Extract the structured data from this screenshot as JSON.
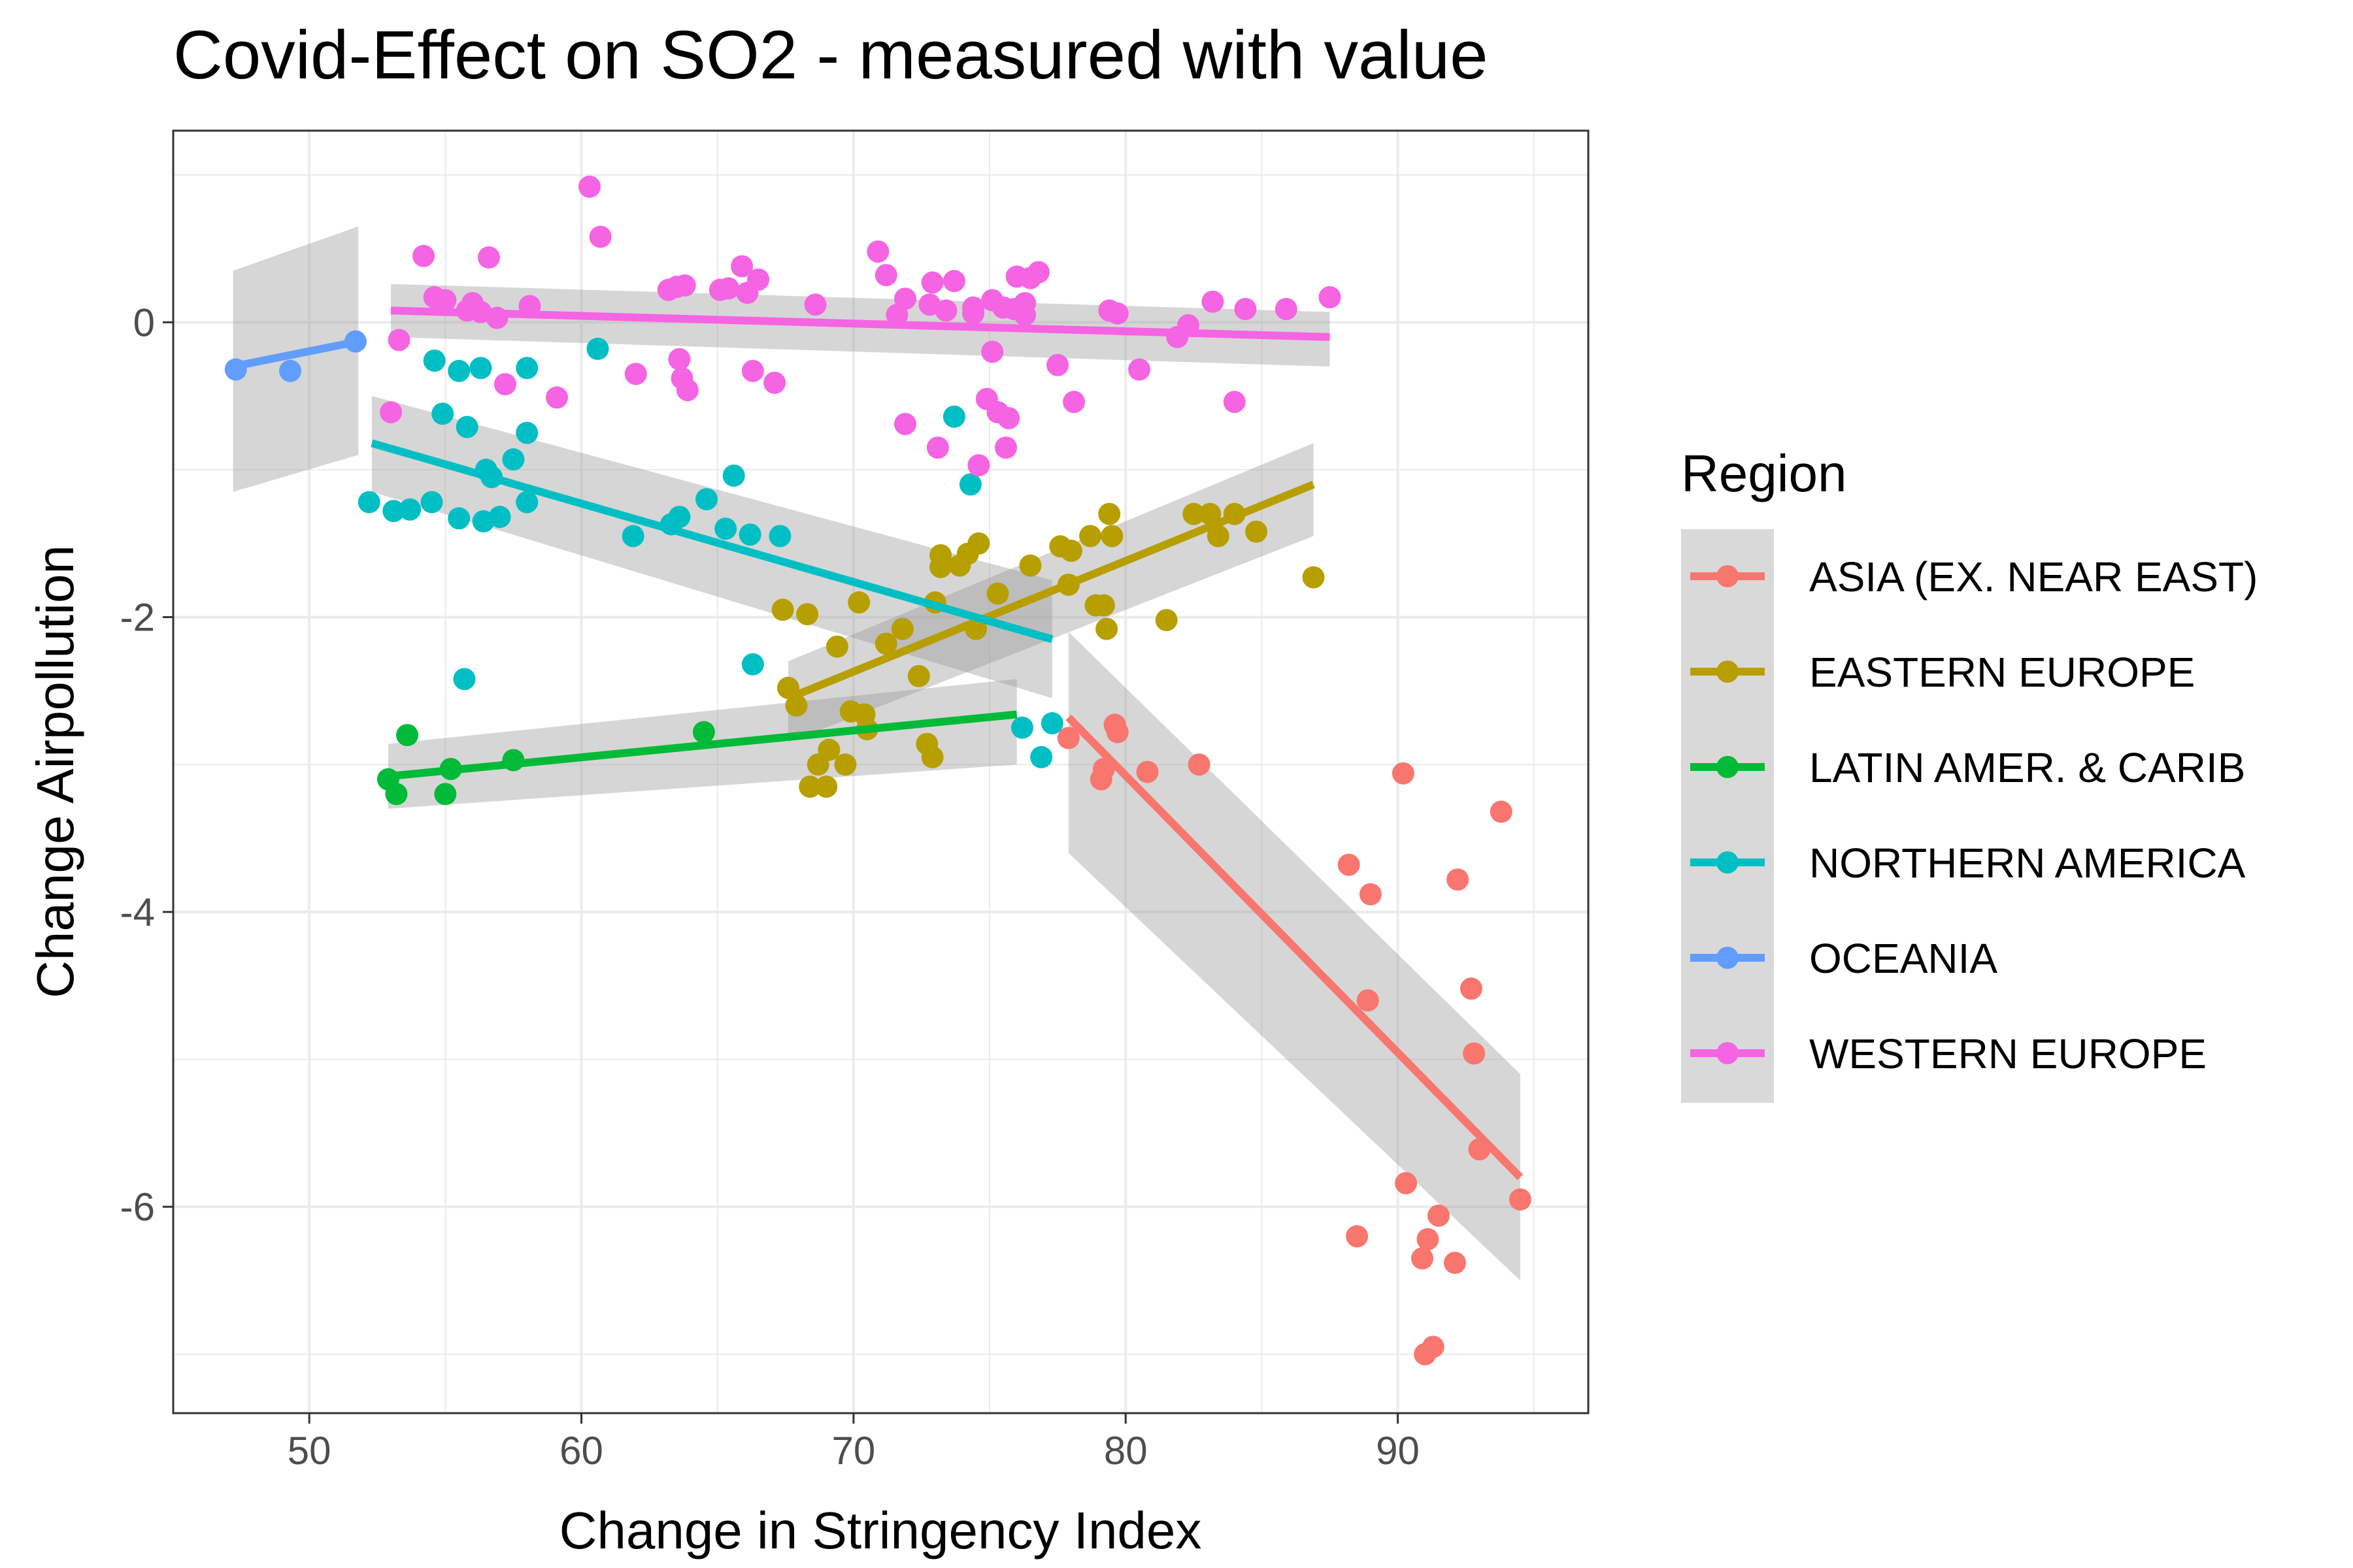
{
  "chart_data": {
    "type": "scatter",
    "title": "Covid-Effect on SO2 - measured with value",
    "xlabel": "Change in Stringency Index",
    "ylabel": "Change Airpollution",
    "xlim": [
      45,
      97
    ],
    "ylim": [
      -7.4,
      1.3
    ],
    "x_ticks": [
      50,
      60,
      70,
      80,
      90
    ],
    "y_ticks": [
      0,
      -2,
      -4,
      -6
    ],
    "x_tick_labels": [
      "50",
      "60",
      "70",
      "80",
      "90"
    ],
    "y_tick_labels": [
      "0",
      "-2",
      "-4",
      "-6"
    ],
    "grid": true,
    "legend": {
      "title": "Region",
      "position": "right"
    },
    "series": [
      {
        "name": "ASIA (EX. NEAR EAST)",
        "color": "#F8766D",
        "points": [
          [
            77.9,
            -2.82
          ],
          [
            79.1,
            -3.1
          ],
          [
            79.2,
            -3.03
          ],
          [
            79.7,
            -2.78
          ],
          [
            79.6,
            -2.73
          ],
          [
            80.8,
            -3.05
          ],
          [
            82.7,
            -3.0
          ],
          [
            88.2,
            -3.68
          ],
          [
            88.5,
            -6.2
          ],
          [
            88.9,
            -4.6
          ],
          [
            89.0,
            -3.88
          ],
          [
            90.2,
            -3.06
          ],
          [
            90.3,
            -5.84
          ],
          [
            90.9,
            -6.35
          ],
          [
            91.1,
            -6.22
          ],
          [
            91.0,
            -7.0
          ],
          [
            91.3,
            -6.95
          ],
          [
            91.5,
            -6.06
          ],
          [
            92.1,
            -6.38
          ],
          [
            92.2,
            -3.78
          ],
          [
            92.7,
            -4.52
          ],
          [
            92.8,
            -4.96
          ],
          [
            93.0,
            -5.61
          ],
          [
            93.8,
            -3.32
          ],
          [
            94.5,
            -5.95
          ]
        ],
        "fit": {
          "x": [
            77.9,
            94.5
          ],
          "y": [
            -2.68,
            -5.8
          ],
          "ci_upper": [
            -2.1,
            -5.1
          ],
          "ci_lower": [
            -3.6,
            -6.5
          ]
        }
      },
      {
        "name": "EASTERN EUROPE",
        "color": "#B79F00",
        "points": [
          [
            67.4,
            -1.95
          ],
          [
            67.6,
            -2.48
          ],
          [
            67.9,
            -2.6
          ],
          [
            68.3,
            -1.98
          ],
          [
            68.4,
            -3.15
          ],
          [
            68.7,
            -3.0
          ],
          [
            69.0,
            -3.15
          ],
          [
            69.1,
            -2.9
          ],
          [
            69.4,
            -2.2
          ],
          [
            69.7,
            -3.0
          ],
          [
            69.9,
            -2.64
          ],
          [
            70.2,
            -1.9
          ],
          [
            70.4,
            -2.66
          ],
          [
            70.5,
            -2.76
          ],
          [
            71.2,
            -2.18
          ],
          [
            71.8,
            -2.08
          ],
          [
            72.4,
            -2.4
          ],
          [
            72.7,
            -2.86
          ],
          [
            72.9,
            -2.95
          ],
          [
            73.0,
            -1.9
          ],
          [
            73.2,
            -1.58
          ],
          [
            73.2,
            -1.66
          ],
          [
            73.9,
            -1.65
          ],
          [
            74.2,
            -1.57
          ],
          [
            74.5,
            -2.08
          ],
          [
            74.6,
            -1.5
          ],
          [
            75.3,
            -1.84
          ],
          [
            76.5,
            -1.65
          ],
          [
            77.6,
            -1.52
          ],
          [
            77.9,
            -1.78
          ],
          [
            78.0,
            -1.55
          ],
          [
            78.7,
            -1.45
          ],
          [
            78.9,
            -1.92
          ],
          [
            79.2,
            -1.92
          ],
          [
            79.3,
            -2.08
          ],
          [
            79.4,
            -1.3
          ],
          [
            79.5,
            -1.45
          ],
          [
            81.5,
            -2.02
          ],
          [
            82.5,
            -1.3
          ],
          [
            83.1,
            -1.3
          ],
          [
            83.4,
            -1.45
          ],
          [
            84.0,
            -1.3
          ],
          [
            84.8,
            -1.42
          ],
          [
            86.9,
            -1.73
          ]
        ],
        "fit": {
          "x": [
            67.6,
            86.9
          ],
          "y": [
            -2.55,
            -1.1
          ],
          "ci_upper": [
            -2.3,
            -0.82
          ],
          "ci_lower": [
            -2.85,
            -1.45
          ]
        }
      },
      {
        "name": "LATIN AMER. & CARIB",
        "color": "#00BA38",
        "points": [
          [
            52.9,
            -3.1
          ],
          [
            53.2,
            -3.2
          ],
          [
            53.6,
            -2.8
          ],
          [
            55.0,
            -3.2
          ],
          [
            55.2,
            -3.03
          ],
          [
            57.5,
            -2.97
          ],
          [
            64.5,
            -2.78
          ]
        ],
        "fit": {
          "x": [
            52.9,
            76.0
          ],
          "y": [
            -3.08,
            -2.66
          ],
          "ci_upper": [
            -2.86,
            -2.42
          ],
          "ci_lower": [
            -3.3,
            -3.0
          ]
        }
      },
      {
        "name": "NORTHERN AMERICA",
        "color": "#00BFC4",
        "points": [
          [
            52.2,
            -1.22
          ],
          [
            53.1,
            -1.28
          ],
          [
            53.7,
            -1.27
          ],
          [
            54.5,
            -1.22
          ],
          [
            54.6,
            -0.26
          ],
          [
            54.9,
            -0.62
          ],
          [
            55.5,
            -0.33
          ],
          [
            55.5,
            -1.33
          ],
          [
            55.7,
            -2.42
          ],
          [
            55.8,
            -0.71
          ],
          [
            56.3,
            -0.31
          ],
          [
            56.4,
            -1.35
          ],
          [
            56.5,
            -1.0
          ],
          [
            56.7,
            -1.05
          ],
          [
            57.0,
            -1.32
          ],
          [
            57.5,
            -0.93
          ],
          [
            58.0,
            -0.31
          ],
          [
            58.0,
            -1.22
          ],
          [
            58.0,
            -0.75
          ],
          [
            60.6,
            -0.18
          ],
          [
            61.9,
            -1.45
          ],
          [
            63.3,
            -1.37
          ],
          [
            63.6,
            -1.32
          ],
          [
            64.6,
            -1.2
          ],
          [
            65.3,
            -1.4
          ],
          [
            65.6,
            -1.04
          ],
          [
            66.2,
            -1.44
          ],
          [
            66.3,
            -2.32
          ],
          [
            67.3,
            -1.45
          ],
          [
            73.7,
            -0.64
          ],
          [
            74.3,
            -1.1
          ],
          [
            76.2,
            -2.75
          ],
          [
            76.9,
            -2.95
          ],
          [
            77.3,
            -2.72
          ]
        ],
        "fit": {
          "x": [
            52.3,
            77.3
          ],
          "y": [
            -0.82,
            -2.15
          ],
          "ci_upper": [
            -0.5,
            -1.75
          ],
          "ci_lower": [
            -1.15,
            -2.55
          ]
        }
      },
      {
        "name": "OCEANIA",
        "color": "#619CFF",
        "points": [
          [
            47.3,
            -0.32
          ],
          [
            49.3,
            -0.33
          ],
          [
            51.7,
            -0.13
          ]
        ],
        "fit": {
          "x": [
            47.2,
            51.8
          ],
          "y": [
            -0.3,
            -0.13
          ],
          "ci_upper": [
            0.35,
            0.65
          ],
          "ci_lower": [
            -1.15,
            -0.9
          ]
        }
      },
      {
        "name": "WESTERN EUROPE",
        "color": "#F564E3",
        "points": [
          [
            53.0,
            -0.61
          ],
          [
            53.3,
            -0.12
          ],
          [
            54.2,
            0.45
          ],
          [
            54.6,
            0.17
          ],
          [
            55.0,
            0.15
          ],
          [
            55.8,
            0.08
          ],
          [
            56.0,
            0.13
          ],
          [
            56.3,
            0.07
          ],
          [
            56.6,
            0.44
          ],
          [
            56.9,
            0.03
          ],
          [
            57.2,
            -0.42
          ],
          [
            58.1,
            0.11
          ],
          [
            59.1,
            -0.51
          ],
          [
            60.3,
            0.92
          ],
          [
            60.7,
            0.58
          ],
          [
            62.0,
            -0.35
          ],
          [
            63.2,
            0.22
          ],
          [
            63.5,
            0.24
          ],
          [
            63.6,
            -0.25
          ],
          [
            63.7,
            -0.38
          ],
          [
            63.8,
            0.25
          ],
          [
            63.9,
            -0.46
          ],
          [
            65.1,
            0.22
          ],
          [
            65.4,
            0.23
          ],
          [
            65.9,
            0.38
          ],
          [
            66.1,
            0.2
          ],
          [
            66.3,
            -0.33
          ],
          [
            66.5,
            0.29
          ],
          [
            67.1,
            -0.41
          ],
          [
            68.6,
            0.12
          ],
          [
            70.9,
            0.48
          ],
          [
            71.2,
            0.32
          ],
          [
            71.6,
            0.05
          ],
          [
            71.9,
            0.16
          ],
          [
            71.9,
            -0.69
          ],
          [
            72.8,
            0.12
          ],
          [
            72.9,
            0.27
          ],
          [
            73.1,
            -0.85
          ],
          [
            73.4,
            0.08
          ],
          [
            73.7,
            0.28
          ],
          [
            74.4,
            0.1
          ],
          [
            74.4,
            0.06
          ],
          [
            74.6,
            -0.97
          ],
          [
            74.9,
            -0.52
          ],
          [
            75.1,
            -0.2
          ],
          [
            75.1,
            0.15
          ],
          [
            75.3,
            -0.61
          ],
          [
            75.5,
            0.1
          ],
          [
            75.6,
            -0.85
          ],
          [
            75.7,
            -0.65
          ],
          [
            75.9,
            0.09
          ],
          [
            76.0,
            0.31
          ],
          [
            76.3,
            0.13
          ],
          [
            76.3,
            0.05
          ],
          [
            76.5,
            0.3
          ],
          [
            76.8,
            0.34
          ],
          [
            77.5,
            -0.29
          ],
          [
            78.1,
            -0.54
          ],
          [
            79.4,
            0.08
          ],
          [
            79.7,
            0.06
          ],
          [
            80.5,
            -0.32
          ],
          [
            81.9,
            -0.1
          ],
          [
            82.3,
            -0.02
          ],
          [
            83.2,
            0.14
          ],
          [
            84.0,
            -0.54
          ],
          [
            84.4,
            0.09
          ],
          [
            85.9,
            0.09
          ],
          [
            87.5,
            0.17
          ]
        ],
        "fit": {
          "x": [
            53.0,
            87.5
          ],
          "y": [
            0.08,
            -0.1
          ],
          "ci_upper": [
            0.26,
            0.07
          ],
          "ci_lower": [
            -0.1,
            -0.3
          ]
        }
      }
    ]
  }
}
